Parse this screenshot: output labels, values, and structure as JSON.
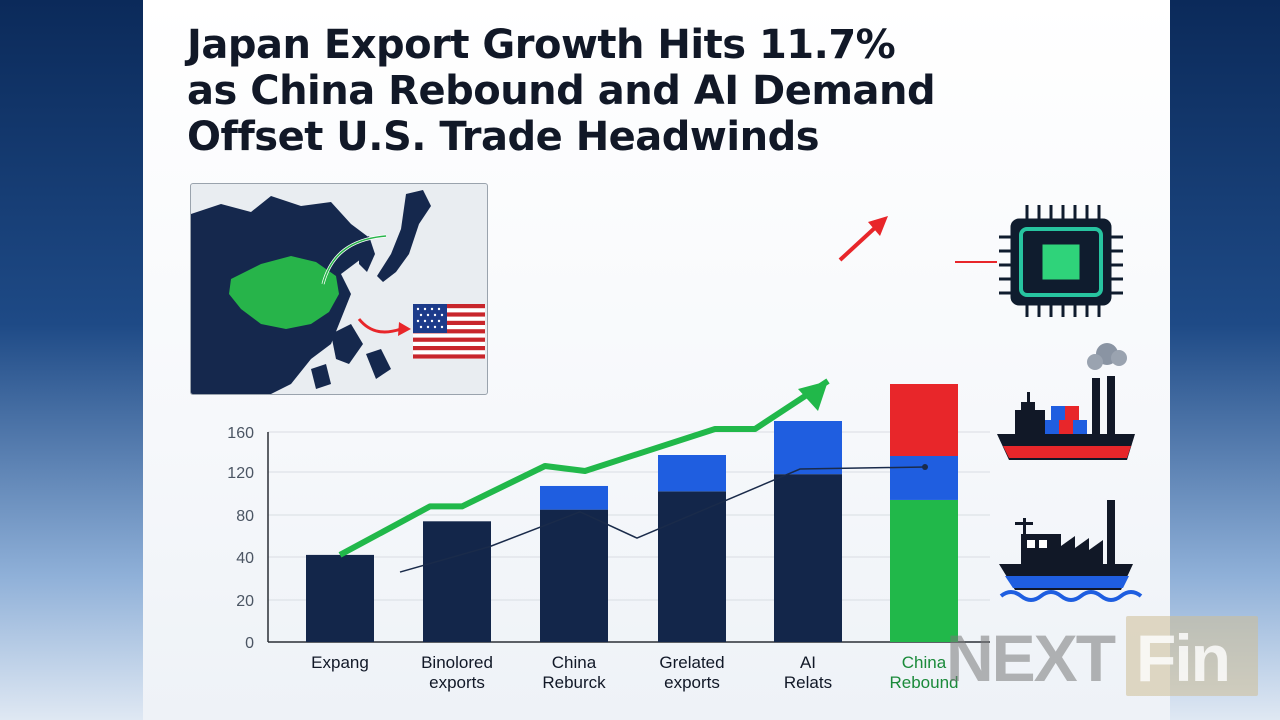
{
  "headline": {
    "line1": "Japan Export Growth Hits 11.7%",
    "line2": "as China Rebound and AI Demand",
    "line3": "Offset U.S. Trade Headwinds"
  },
  "logo": {
    "part1": "NEXT",
    "part2": "Fin"
  },
  "colors": {
    "navy": "#13264a",
    "blue": "#1f5ee0",
    "green": "#21b84a",
    "red": "#e8262a",
    "grid": "#d9dde3",
    "axis": "#2b2f36"
  },
  "icons": [
    "china-japan-map-icon",
    "us-flag-icon",
    "microchip-icon",
    "cargo-ship-icon",
    "ferry-ship-icon"
  ],
  "chart_data": {
    "type": "bar",
    "ylim": [
      0,
      160
    ],
    "yticks": [
      "0",
      "20",
      "40",
      "80",
      "120",
      "160"
    ],
    "categories": [
      {
        "lines": [
          "Expang"
        ],
        "color": "#111827"
      },
      {
        "lines": [
          "Binolored",
          "exports"
        ],
        "color": "#111827"
      },
      {
        "lines": [
          "China",
          "Reburck"
        ],
        "color": "#111827"
      },
      {
        "lines": [
          "Grelated",
          "exports"
        ],
        "color": "#111827"
      },
      {
        "lines": [
          "AI",
          "Relats"
        ],
        "color": "#111827"
      },
      {
        "lines": [
          "China",
          "Rebound"
        ],
        "color": "#1a8a3a"
      }
    ],
    "bars": [
      {
        "segments": [
          {
            "value": 42,
            "color": "#13264a"
          }
        ]
      },
      {
        "segments": [
          {
            "value": 74,
            "color": "#13264a"
          }
        ]
      },
      {
        "segments": [
          {
            "value": 85,
            "color": "#13264a"
          },
          {
            "value": 22,
            "color": "#1f5ee0"
          }
        ]
      },
      {
        "segments": [
          {
            "value": 102,
            "color": "#13264a"
          },
          {
            "value": 35,
            "color": "#1f5ee0"
          }
        ]
      },
      {
        "segments": [
          {
            "value": 118,
            "color": "#13264a"
          },
          {
            "value": 53,
            "color": "#1f5ee0"
          }
        ]
      },
      {
        "segments": [
          {
            "value": 94,
            "color": "#21b84a"
          },
          {
            "value": 42,
            "color": "#1f5ee0"
          },
          {
            "value": 72,
            "color": "#e8262a"
          }
        ]
      }
    ],
    "trend_line": [
      33,
      50,
      83,
      58,
      123,
      125
    ],
    "growth_arrow": [
      42,
      88,
      88,
      126,
      121,
      163,
      163,
      211
    ]
  }
}
